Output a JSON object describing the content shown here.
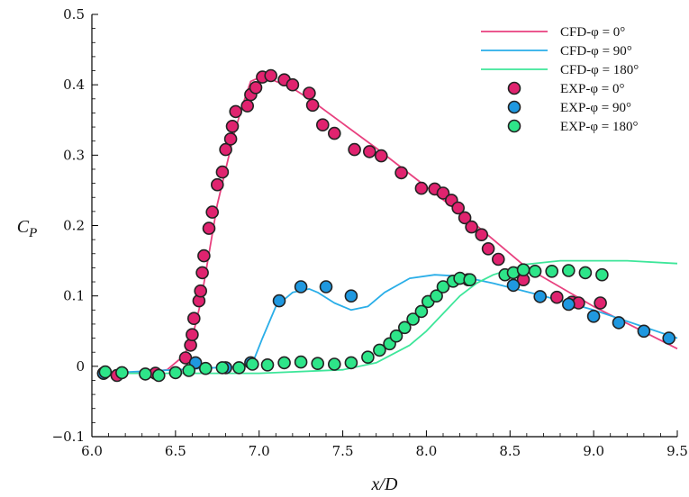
{
  "chart_data": {
    "type": "line",
    "xlabel": "x/D",
    "ylabel": "C_P",
    "xlim": [
      6.0,
      9.5
    ],
    "ylim": [
      -0.1,
      0.5
    ],
    "xticks": [
      "6.0",
      "6.5",
      "7.0",
      "7.5",
      "8.0",
      "8.5",
      "9.0",
      "9.5"
    ],
    "yticks": [
      "−0.1",
      "0",
      "0.1",
      "0.2",
      "0.3",
      "0.4",
      "0.5"
    ],
    "grid": false,
    "legend_position": "top-right",
    "series": [
      {
        "name": "CFD-φ = 0°",
        "kind": "line",
        "color": "#e8417f",
        "x": [
          6.05,
          6.3,
          6.45,
          6.55,
          6.6,
          6.65,
          6.7,
          6.75,
          6.8,
          6.85,
          6.9,
          6.95,
          7.0,
          7.05,
          7.1,
          7.2,
          7.3,
          7.5,
          7.7,
          8.0,
          8.3,
          8.6,
          9.0,
          9.5
        ],
        "y": [
          -0.01,
          -0.01,
          -0.005,
          0.015,
          0.04,
          0.09,
          0.16,
          0.23,
          0.28,
          0.33,
          0.37,
          0.405,
          0.41,
          0.41,
          0.405,
          0.395,
          0.38,
          0.345,
          0.31,
          0.255,
          0.2,
          0.14,
          0.085,
          0.025
        ]
      },
      {
        "name": "CFD-φ = 90°",
        "kind": "line",
        "color": "#2aaee8",
        "x": [
          6.05,
          6.5,
          6.9,
          6.97,
          7.02,
          7.1,
          7.2,
          7.3,
          7.35,
          7.45,
          7.55,
          7.65,
          7.75,
          7.9,
          8.05,
          8.2,
          8.4,
          8.7,
          9.0,
          9.5
        ],
        "y": [
          -0.01,
          -0.005,
          0.0,
          0.01,
          0.04,
          0.085,
          0.105,
          0.11,
          0.105,
          0.09,
          0.08,
          0.085,
          0.105,
          0.125,
          0.13,
          0.128,
          0.118,
          0.1,
          0.08,
          0.04
        ]
      },
      {
        "name": "CFD-φ = 180°",
        "kind": "line",
        "color": "#3ee69a",
        "x": [
          6.05,
          6.5,
          7.0,
          7.5,
          7.7,
          7.9,
          8.0,
          8.1,
          8.2,
          8.3,
          8.4,
          8.6,
          8.8,
          9.0,
          9.2,
          9.5
        ],
        "y": [
          -0.01,
          -0.01,
          -0.01,
          -0.005,
          0.005,
          0.03,
          0.05,
          0.075,
          0.1,
          0.118,
          0.13,
          0.145,
          0.15,
          0.15,
          0.15,
          0.146
        ]
      },
      {
        "name": "EXP-φ = 0°",
        "kind": "scatter",
        "color": "#e0236f",
        "x": [
          6.07,
          6.15,
          6.38,
          6.56,
          6.59,
          6.6,
          6.61,
          6.64,
          6.65,
          6.66,
          6.67,
          6.7,
          6.72,
          6.75,
          6.78,
          6.8,
          6.83,
          6.84,
          6.86,
          6.93,
          6.95,
          6.98,
          7.02,
          7.07,
          7.15,
          7.2,
          7.3,
          7.32,
          7.38,
          7.45,
          7.57,
          7.66,
          7.73,
          7.85,
          7.97,
          8.05,
          8.1,
          8.15,
          8.19,
          8.23,
          8.27,
          8.33,
          8.37,
          8.43,
          8.58,
          8.78,
          8.87,
          8.91,
          9.04
        ],
        "y": [
          -0.01,
          -0.013,
          -0.01,
          0.012,
          0.03,
          0.045,
          0.068,
          0.093,
          0.107,
          0.133,
          0.157,
          0.196,
          0.219,
          0.258,
          0.276,
          0.308,
          0.323,
          0.341,
          0.362,
          0.37,
          0.386,
          0.396,
          0.411,
          0.413,
          0.407,
          0.4,
          0.388,
          0.371,
          0.343,
          0.331,
          0.308,
          0.305,
          0.299,
          0.275,
          0.253,
          0.252,
          0.246,
          0.236,
          0.225,
          0.211,
          0.198,
          0.187,
          0.167,
          0.152,
          0.123,
          0.098,
          0.091,
          0.09,
          0.09
        ]
      },
      {
        "name": "EXP-φ = 90°",
        "kind": "scatter",
        "color": "#1f98e0",
        "x": [
          6.07,
          6.62,
          6.8,
          6.95,
          7.12,
          7.25,
          7.4,
          7.55,
          8.25,
          8.52,
          8.68,
          8.85,
          9.0,
          9.15,
          9.3,
          9.45
        ],
        "y": [
          -0.01,
          0.005,
          -0.002,
          0.005,
          0.093,
          0.113,
          0.113,
          0.1,
          0.123,
          0.115,
          0.099,
          0.088,
          0.071,
          0.062,
          0.05,
          0.04
        ]
      },
      {
        "name": "EXP-φ = 180°",
        "kind": "scatter",
        "color": "#2ee589",
        "x": [
          6.08,
          6.18,
          6.32,
          6.4,
          6.5,
          6.58,
          6.68,
          6.78,
          6.88,
          6.96,
          7.05,
          7.15,
          7.25,
          7.35,
          7.45,
          7.55,
          7.65,
          7.72,
          7.78,
          7.82,
          7.87,
          7.92,
          7.97,
          8.01,
          8.06,
          8.1,
          8.16,
          8.2,
          8.26,
          8.47,
          8.52,
          8.58,
          8.65,
          8.75,
          8.85,
          8.95,
          9.05
        ],
        "y": [
          -0.008,
          -0.009,
          -0.011,
          -0.013,
          -0.009,
          -0.006,
          -0.003,
          -0.002,
          -0.002,
          0.003,
          0.002,
          0.005,
          0.006,
          0.004,
          0.003,
          0.005,
          0.013,
          0.023,
          0.032,
          0.043,
          0.055,
          0.067,
          0.078,
          0.092,
          0.1,
          0.113,
          0.121,
          0.125,
          0.123,
          0.13,
          0.133,
          0.137,
          0.135,
          0.135,
          0.136,
          0.133,
          0.13
        ]
      }
    ]
  }
}
